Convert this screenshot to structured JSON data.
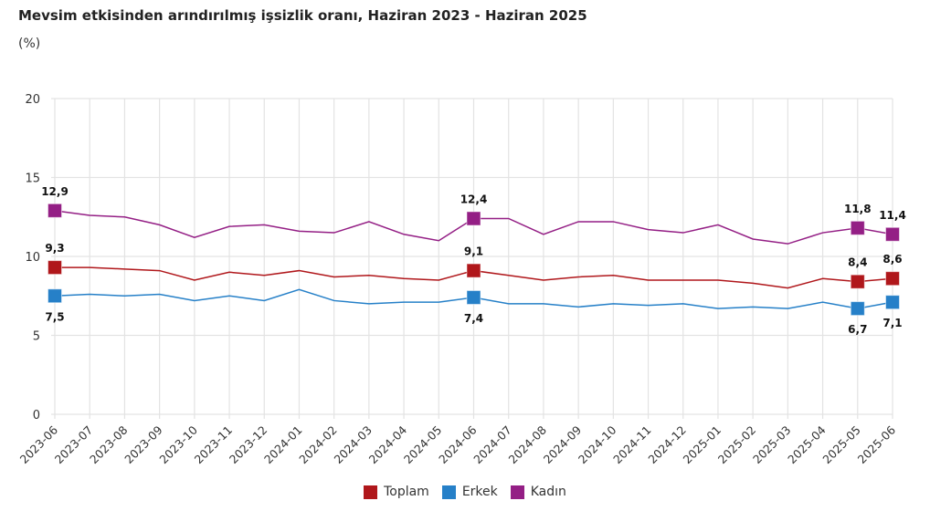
{
  "chart_data": {
    "type": "line",
    "title": "Mevsim etkisinden arındırılmış işsizlik oranı, Haziran 2023 - Haziran 2025",
    "subtitle": "(%)",
    "xlabel": "",
    "ylabel": "",
    "ylim": [
      0,
      20
    ],
    "yticks": [
      0,
      5,
      10,
      15,
      20
    ],
    "grid": true,
    "legend_position": "bottom",
    "x": [
      "2023-06",
      "2023-07",
      "2023-08",
      "2023-09",
      "2023-10",
      "2023-11",
      "2023-12",
      "2024-01",
      "2024-02",
      "2024-03",
      "2024-04",
      "2024-05",
      "2024-06",
      "2024-07",
      "2024-08",
      "2024-09",
      "2024-10",
      "2024-11",
      "2024-12",
      "2025-01",
      "2025-02",
      "2025-03",
      "2025-04",
      "2025-05",
      "2025-06"
    ],
    "labeled_indices": [
      0,
      12,
      23,
      24
    ],
    "series": [
      {
        "name": "Toplam",
        "color": "#b0171b",
        "label_position": "above",
        "values": [
          9.3,
          9.3,
          9.2,
          9.1,
          8.5,
          9.0,
          8.8,
          9.1,
          8.7,
          8.8,
          8.6,
          8.5,
          9.1,
          8.8,
          8.5,
          8.7,
          8.8,
          8.5,
          8.5,
          8.5,
          8.3,
          8.0,
          8.6,
          8.4,
          8.6
        ]
      },
      {
        "name": "Erkek",
        "color": "#2680c8",
        "label_position": "below",
        "values": [
          7.5,
          7.6,
          7.5,
          7.6,
          7.2,
          7.5,
          7.2,
          7.9,
          7.2,
          7.0,
          7.1,
          7.1,
          7.4,
          7.0,
          7.0,
          6.8,
          7.0,
          6.9,
          7.0,
          6.7,
          6.8,
          6.7,
          7.1,
          6.7,
          7.1
        ]
      },
      {
        "name": "Kadın",
        "color": "#941f85",
        "label_position": "above",
        "values": [
          12.9,
          12.6,
          12.5,
          12.0,
          11.2,
          11.9,
          12.0,
          11.6,
          11.5,
          12.2,
          11.4,
          11.0,
          12.4,
          12.4,
          11.4,
          12.2,
          12.2,
          11.7,
          11.5,
          12.0,
          11.1,
          10.8,
          11.5,
          11.8,
          11.4
        ]
      }
    ]
  }
}
